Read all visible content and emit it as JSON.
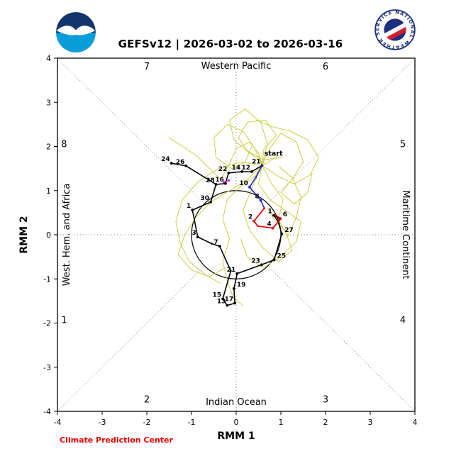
{
  "header": {
    "title": "GEFSv12 | 2026-03-02 to 2026-03-16",
    "noaa_logo_alt": "NOAA",
    "nws_ring_text": "NATIONAL WEATHER SERVICE"
  },
  "footer": {
    "credit": "Climate Prediction Center",
    "credit_color": "#e80000"
  },
  "chart_data": {
    "type": "line",
    "title": "GEFSv12 | 2026-03-02 to 2026-03-16",
    "xlabel": "RMM 1",
    "ylabel": "RMM 2",
    "xlim": [
      -4,
      4
    ],
    "ylim": [
      -4,
      4
    ],
    "ticks": [
      -4,
      -3,
      -2,
      -1,
      0,
      1,
      2,
      3,
      4
    ],
    "grid": "dotted diagonals plus axes through origin, unit circle at center",
    "unit_circle_radius": 1,
    "phase_labels": [
      {
        "text": "1",
        "x": -3.85,
        "y": -1.94
      },
      {
        "text": "2",
        "x": -2.0,
        "y": -3.74
      },
      {
        "text": "3",
        "x": 2.0,
        "y": -3.74
      },
      {
        "text": "4",
        "x": 3.73,
        "y": -1.94
      },
      {
        "text": "5",
        "x": 3.73,
        "y": 2.04
      },
      {
        "text": "6",
        "x": 2.0,
        "y": 3.8
      },
      {
        "text": "7",
        "x": -2.0,
        "y": 3.8
      },
      {
        "text": "8",
        "x": -3.85,
        "y": 2.04
      }
    ],
    "region_labels": {
      "top": "Western Pacific",
      "right": "Maritime Continent",
      "bottom": "Indian Ocean",
      "left": "West. Hem. and Africa"
    },
    "start_label": {
      "text": "start",
      "x": 0.63,
      "y": 1.79
    },
    "series": [
      {
        "name": "ensemble-member",
        "color": "#c8c832",
        "width": 0.9,
        "members": [
          [
            [
              0.58,
              1.57
            ],
            [
              0.42,
              1.95
            ],
            [
              0.15,
              2.35
            ],
            [
              -0.2,
              2.5
            ],
            [
              -0.5,
              2.2
            ],
            [
              -0.45,
              1.75
            ],
            [
              -0.1,
              1.5
            ],
            [
              0.2,
              1.65
            ],
            [
              0.35,
              2.0
            ]
          ],
          [
            [
              0.58,
              1.57
            ],
            [
              0.75,
              1.95
            ],
            [
              1.0,
              2.3
            ],
            [
              1.35,
              2.1
            ],
            [
              1.5,
              1.65
            ],
            [
              1.25,
              1.25
            ],
            [
              1.0,
              0.95
            ],
            [
              1.3,
              0.7
            ],
            [
              1.6,
              0.95
            ],
            [
              1.7,
              1.4
            ]
          ],
          [
            [
              0.58,
              1.57
            ],
            [
              0.5,
              1.15
            ],
            [
              0.75,
              0.8
            ],
            [
              1.1,
              0.55
            ],
            [
              1.45,
              0.3
            ],
            [
              1.35,
              -0.15
            ],
            [
              1.0,
              -0.5
            ],
            [
              0.6,
              -0.75
            ],
            [
              0.25,
              -0.5
            ],
            [
              0.1,
              -0.1
            ]
          ],
          [
            [
              0.58,
              1.57
            ],
            [
              0.25,
              1.25
            ],
            [
              -0.15,
              1.0
            ],
            [
              -0.55,
              0.75
            ],
            [
              -0.9,
              0.4
            ],
            [
              -1.15,
              0.0
            ],
            [
              -1.3,
              -0.45
            ],
            [
              -1.0,
              -0.8
            ],
            [
              -0.6,
              -0.95
            ],
            [
              -0.25,
              -0.75
            ]
          ],
          [
            [
              0.58,
              1.57
            ],
            [
              0.7,
              2.05
            ],
            [
              0.55,
              2.55
            ],
            [
              0.2,
              2.85
            ],
            [
              -0.15,
              2.6
            ],
            [
              -0.05,
              2.15
            ],
            [
              0.3,
              1.85
            ],
            [
              0.65,
              1.6
            ],
            [
              0.95,
              1.8
            ]
          ],
          [
            [
              0.58,
              1.57
            ],
            [
              0.9,
              1.35
            ],
            [
              1.3,
              1.15
            ],
            [
              1.65,
              1.35
            ],
            [
              1.85,
              1.75
            ],
            [
              1.6,
              2.15
            ],
            [
              1.2,
              2.35
            ],
            [
              0.8,
              2.45
            ],
            [
              0.45,
              2.6
            ]
          ],
          [
            [
              0.58,
              1.57
            ],
            [
              0.35,
              1.05
            ],
            [
              0.15,
              0.55
            ],
            [
              0.3,
              0.1
            ],
            [
              0.6,
              -0.3
            ],
            [
              0.95,
              -0.6
            ],
            [
              1.25,
              -0.35
            ],
            [
              1.1,
              0.1
            ],
            [
              0.85,
              0.35
            ],
            [
              0.7,
              0.6
            ]
          ],
          [
            [
              0.58,
              1.57
            ],
            [
              0.1,
              1.65
            ],
            [
              -0.4,
              1.5
            ],
            [
              -0.85,
              1.2
            ],
            [
              -1.2,
              0.8
            ],
            [
              -1.35,
              0.3
            ],
            [
              -1.25,
              -0.2
            ],
            [
              -1.05,
              -0.6
            ],
            [
              -0.7,
              -0.9
            ],
            [
              -0.35,
              -1.1
            ]
          ],
          [
            [
              0.58,
              1.57
            ],
            [
              0.62,
              1.95
            ],
            [
              0.9,
              2.25
            ],
            [
              0.65,
              2.6
            ],
            [
              0.25,
              2.55
            ],
            [
              0.05,
              2.2
            ],
            [
              0.25,
              1.9
            ],
            [
              0.6,
              1.7
            ],
            [
              1.05,
              1.75
            ]
          ],
          [
            [
              0.58,
              1.57
            ],
            [
              0.8,
              1.15
            ],
            [
              1.05,
              0.8
            ],
            [
              0.95,
              0.35
            ],
            [
              1.15,
              -0.05
            ],
            [
              1.35,
              0.4
            ],
            [
              1.45,
              0.85
            ],
            [
              1.25,
              1.3
            ],
            [
              0.95,
              1.55
            ]
          ],
          [
            [
              0.58,
              1.57
            ],
            [
              0.4,
              1.3
            ],
            [
              0.1,
              1.1
            ],
            [
              -0.2,
              0.8
            ],
            [
              -0.3,
              0.35
            ],
            [
              -0.15,
              -0.1
            ],
            [
              -0.3,
              -0.6
            ],
            [
              -0.2,
              -1.05
            ],
            [
              -0.05,
              -1.45
            ],
            [
              0.15,
              -1.6
            ]
          ],
          [
            [
              0.58,
              1.57
            ],
            [
              0.5,
              1.85
            ],
            [
              0.3,
              2.1
            ],
            [
              0.0,
              1.95
            ],
            [
              -0.15,
              1.6
            ],
            [
              -0.35,
              1.25
            ],
            [
              -0.6,
              1.5
            ],
            [
              -0.9,
              1.8
            ],
            [
              -1.2,
              2.0
            ],
            [
              -1.5,
              2.2
            ]
          ]
        ]
      },
      {
        "name": "observed",
        "color": "#000000",
        "width": 1.6,
        "segments": [
          [
            {
              "x": -1.45,
              "y": 1.62,
              "l": "24"
            },
            {
              "x": -1.12,
              "y": 1.56,
              "l": "26"
            },
            {
              "x": -0.45,
              "y": 1.14,
              "l": "28"
            },
            {
              "x": -0.57,
              "y": 0.74,
              "l": "30"
            },
            {
              "x": -0.98,
              "y": 0.56,
              "l": "1"
            },
            {
              "x": -0.86,
              "y": -0.05,
              "l": "3"
            },
            {
              "x": -0.55,
              "y": -0.2
            },
            {
              "x": -0.37,
              "y": -0.26,
              "l": "7"
            },
            {
              "x": -0.12,
              "y": -0.82
            },
            {
              "x": -0.3,
              "y": -1.45,
              "l": "15"
            },
            {
              "x": -0.2,
              "y": -1.6,
              "l": "13"
            },
            {
              "x": -0.03,
              "y": -1.55,
              "l": "17"
            },
            {
              "x": -0.05,
              "y": -1.22,
              "l": "19",
              "a": "s"
            },
            {
              "x": 0.02,
              "y": -0.88,
              "l": "21"
            },
            {
              "x": 0.57,
              "y": -0.68,
              "l": "23"
            },
            {
              "x": 0.85,
              "y": -0.57,
              "l": "25",
              "a": "s"
            },
            {
              "x": 1.02,
              "y": 0.02,
              "l": "27",
              "a": "s"
            },
            {
              "x": 0.94,
              "y": 0.3
            },
            {
              "x": 0.84,
              "y": 0.44,
              "l": "1"
            },
            {
              "x": 0.98,
              "y": 0.37,
              "l": "6",
              "a": "s"
            }
          ],
          [
            {
              "x": 0.58,
              "y": 1.57,
              "l": "21"
            },
            {
              "x": 0.35,
              "y": 1.43,
              "l": "12"
            },
            {
              "x": 0.13,
              "y": 1.43,
              "l": "14"
            },
            {
              "x": -0.17,
              "y": 1.4,
              "l": "22"
            },
            {
              "x": -0.24,
              "y": 1.16,
              "l": "16"
            },
            {
              "x": -0.45,
              "y": 1.14
            }
          ]
        ]
      },
      {
        "name": "recent-blue",
        "color": "#2222ee",
        "width": 1.6,
        "segments": [
          [
            {
              "x": 0.58,
              "y": 1.57
            },
            {
              "x": 0.44,
              "y": 1.3
            },
            {
              "x": 0.3,
              "y": 1.08,
              "l": "10"
            },
            {
              "x": 0.55,
              "y": 0.78,
              "l": "8"
            },
            {
              "x": 0.63,
              "y": 0.6
            }
          ]
        ]
      },
      {
        "name": "forecast-red",
        "color": "#ee0000",
        "width": 1.7,
        "segments": [
          [
            {
              "x": 0.63,
              "y": 0.6
            },
            {
              "x": 0.4,
              "y": 0.31,
              "l": "2"
            },
            {
              "x": 0.48,
              "y": 0.2
            },
            {
              "x": 0.82,
              "y": 0.15,
              "l": "4"
            },
            {
              "x": 1.0,
              "y": 0.36
            },
            {
              "x": 0.88,
              "y": 0.45
            }
          ]
        ]
      },
      {
        "name": "marker-magenta",
        "color": "#cc00cc",
        "width": 1.6,
        "segments": [
          [
            {
              "x": -0.28,
              "y": 1.19
            },
            {
              "x": -0.16,
              "y": 1.23
            }
          ]
        ]
      }
    ]
  }
}
